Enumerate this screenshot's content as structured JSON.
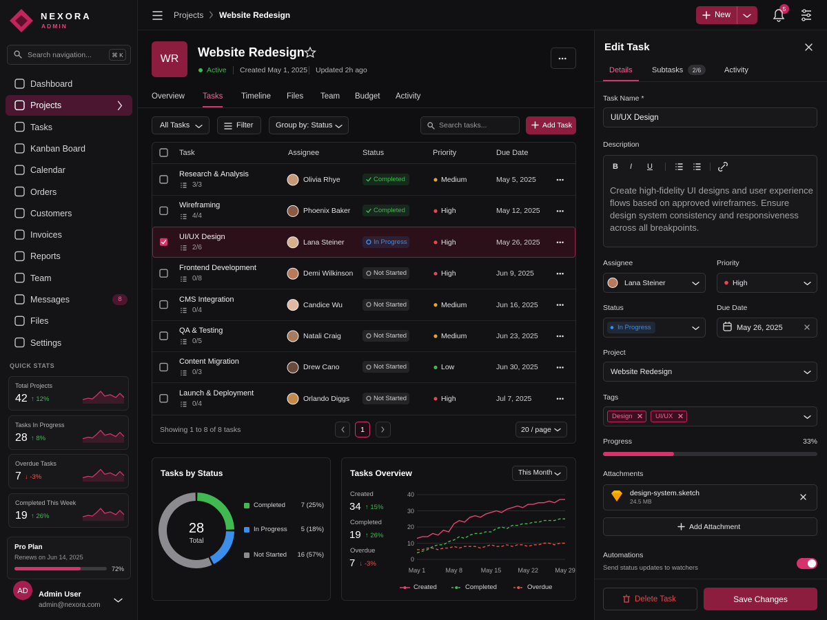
{
  "brand": {
    "name": "NEXORA",
    "sub": "ADMIN"
  },
  "sidebar": {
    "search": "Search navigation...",
    "shortcut": "⌘ K",
    "nav": [
      {
        "label": "Dashboard"
      },
      {
        "label": "Projects",
        "active": true
      },
      {
        "label": "Tasks"
      },
      {
        "label": "Kanban Board"
      },
      {
        "label": "Calendar"
      },
      {
        "label": "Orders"
      },
      {
        "label": "Customers"
      },
      {
        "label": "Invoices"
      },
      {
        "label": "Reports"
      },
      {
        "label": "Team"
      },
      {
        "label": "Messages",
        "badge": 8
      },
      {
        "label": "Files"
      },
      {
        "label": "Settings"
      }
    ],
    "quick_stats_title": "QUICK STATS",
    "stats": [
      {
        "label": "Total Projects",
        "value": 42,
        "change": "↑ 12%",
        "up": true
      },
      {
        "label": "Tasks In Progress",
        "value": 28,
        "change": "↑ 8%",
        "up": true
      },
      {
        "label": "Overdue Tasks",
        "value": 7,
        "change": "↓ -3%",
        "up": false
      },
      {
        "label": "Completed This Week",
        "value": 19,
        "change": "↑ 26%",
        "up": true
      }
    ],
    "plan": {
      "title": "Pro Plan",
      "renews": "Renews on Jun 14, 2025",
      "progress": {
        "value": 72,
        "label": "72%"
      }
    },
    "user": {
      "initials": "AD",
      "name": "Admin User",
      "email": "admin@nexora.com"
    }
  },
  "topbar": {
    "breadcrumb": [
      "Projects",
      "Website Redesign"
    ],
    "new_button": "New",
    "notifications": 5
  },
  "project": {
    "initials": "WR",
    "title": "Website Redesign",
    "status": "Active",
    "created": "Created May 1, 2025",
    "updated": "Updated 2h ago",
    "tabs": [
      {
        "label": "Overview"
      },
      {
        "label": "Tasks",
        "active": true
      },
      {
        "label": "Timeline"
      },
      {
        "label": "Files"
      },
      {
        "label": "Team"
      },
      {
        "label": "Budget"
      },
      {
        "label": "Activity"
      }
    ]
  },
  "toolbar": {
    "view": "All Tasks",
    "filter": "Filter",
    "group": "Group by: Status",
    "search": "Search tasks...",
    "add": "Add Task"
  },
  "table": {
    "columns": [
      "Task",
      "Assignee",
      "Status",
      "Priority",
      "Due Date"
    ],
    "rows": [
      {
        "name": "Research & Analysis",
        "subtasks": "3/3",
        "assignee": "Olivia Rhye",
        "status": {
          "label": "Completed",
          "color": "#3fb950"
        },
        "priority": {
          "label": "Medium",
          "color": "#e3a52b"
        },
        "due": "May 5, 2025"
      },
      {
        "name": "Wireframing",
        "subtasks": "4/4",
        "assignee": "Phoenix Baker",
        "status": {
          "label": "Completed",
          "color": "#3fb950"
        },
        "priority": {
          "label": "High",
          "color": "#e5484d"
        },
        "due": "May 12, 2025"
      },
      {
        "name": "UI/UX Design",
        "subtasks": "2/6",
        "assignee": "Lana Steiner",
        "status": {
          "label": "In Progress",
          "color": "#3b8eea"
        },
        "priority": {
          "label": "High",
          "color": "#e5484d"
        },
        "due": "May 26, 2025",
        "selected": true
      },
      {
        "name": "Frontend Development",
        "subtasks": "0/8",
        "assignee": "Demi Wilkinson",
        "status": {
          "label": "Not Started",
          "color": "#9a9a9f"
        },
        "priority": {
          "label": "High",
          "color": "#e5484d"
        },
        "due": "Jun 9, 2025"
      },
      {
        "name": "CMS Integration",
        "subtasks": "0/4",
        "assignee": "Candice Wu",
        "status": {
          "label": "Not Started",
          "color": "#9a9a9f"
        },
        "priority": {
          "label": "Medium",
          "color": "#e3a52b"
        },
        "due": "Jun 16, 2025"
      },
      {
        "name": "QA & Testing",
        "subtasks": "0/5",
        "assignee": "Natali Craig",
        "status": {
          "label": "Not Started",
          "color": "#9a9a9f"
        },
        "priority": {
          "label": "Medium",
          "color": "#e3a52b"
        },
        "due": "Jun 23, 2025"
      },
      {
        "name": "Content Migration",
        "subtasks": "0/3",
        "assignee": "Drew Cano",
        "status": {
          "label": "Not Started",
          "color": "#9a9a9f"
        },
        "priority": {
          "label": "Low",
          "color": "#3fb950"
        },
        "due": "Jun 30, 2025"
      },
      {
        "name": "Launch & Deployment",
        "subtasks": "0/4",
        "assignee": "Orlando Diggs",
        "status": {
          "label": "Not Started",
          "color": "#9a9a9f"
        },
        "priority": {
          "label": "High",
          "color": "#e5484d"
        },
        "due": "Jul 7, 2025"
      }
    ],
    "footer": "Showing 1 to 8 of 8 tasks",
    "page": 1,
    "per_page": "20 / page"
  },
  "chart_data": [
    {
      "type": "donut",
      "title": "Tasks by Status",
      "total": 28,
      "total_label": "Total",
      "categories": [
        "Completed",
        "In Progress",
        "Not Started"
      ],
      "values": [
        7,
        5,
        16
      ],
      "value_labels": [
        "7 (25%)",
        "5 (18%)",
        "16 (57%)"
      ],
      "colors": [
        "#3fb950",
        "#3b8eea",
        "#8b8b90"
      ]
    },
    {
      "type": "line",
      "title": "Tasks Overview",
      "period": "This Month",
      "summary": [
        {
          "name": "Created",
          "value": 34,
          "change": "↑ 15%",
          "up": true
        },
        {
          "name": "Completed",
          "value": 19,
          "change": "↑ 26%",
          "up": true
        },
        {
          "name": "Overdue",
          "value": 7,
          "change": "↓ -3%",
          "up": false
        }
      ],
      "categories": [
        "May 1",
        null,
        null,
        null,
        null,
        null,
        null,
        "May 8",
        null,
        null,
        null,
        null,
        null,
        null,
        "May 15",
        null,
        null,
        null,
        null,
        null,
        null,
        "May 22",
        null,
        null,
        null,
        null,
        null,
        null,
        "May 29"
      ],
      "series": [
        {
          "name": "Created",
          "color": "#e8436f",
          "dashed": false,
          "values": [
            13,
            14,
            14,
            16,
            15,
            18,
            17,
            22,
            24,
            23,
            26,
            27,
            26,
            28,
            29,
            30,
            29,
            31,
            32,
            33,
            32,
            34,
            34,
            35,
            35,
            36,
            35,
            37,
            37
          ]
        },
        {
          "name": "Completed",
          "color": "#3fb950",
          "dashed": true,
          "values": [
            4,
            5,
            6,
            8,
            9,
            9,
            11,
            12,
            14,
            13,
            15,
            16,
            16,
            17,
            17,
            19,
            20,
            19,
            21,
            21,
            22,
            22,
            23,
            23,
            24,
            24,
            24,
            25,
            25
          ]
        },
        {
          "name": "Overdue",
          "color": "#e5534b",
          "dashed": true,
          "values": [
            6,
            6,
            7,
            7,
            6,
            7,
            7,
            8,
            7,
            8,
            8,
            8,
            7,
            8,
            9,
            8,
            8,
            9,
            8,
            9,
            9,
            8,
            9,
            9,
            10,
            10,
            9,
            10,
            10
          ]
        }
      ],
      "ylim": [
        0,
        40
      ],
      "yticks": [
        0,
        10,
        20,
        30,
        40
      ],
      "grid": true
    }
  ],
  "edit_panel": {
    "title": "Edit Task",
    "tabs": [
      {
        "label": "Details",
        "active": true
      },
      {
        "label": "Subtasks",
        "badge": "2/6"
      },
      {
        "label": "Activity"
      }
    ],
    "task_name_label": "Task Name *",
    "task_name": "UI/UX Design",
    "description_label": "Description",
    "toolbar": [
      "B",
      "I",
      "U"
    ],
    "description": "Create high-fidelity UI designs and user experience flows based on approved wireframes. Ensure design system consistency and responsiveness across all breakpoints.",
    "assignee_label": "Assignee",
    "assignee": "Lana Steiner",
    "priority_label": "Priority",
    "priority": {
      "label": "High",
      "color": "#e5484d"
    },
    "status_label": "Status",
    "status": {
      "label": "In Progress",
      "color": "#3b8eea"
    },
    "due_label": "Due Date",
    "due": "May 26, 2025",
    "project_label": "Project",
    "project": "Website Redesign",
    "tags_label": "Tags",
    "tags": [
      "Design",
      "UI/UX"
    ],
    "progress_label": "Progress",
    "progress": {
      "value": 33,
      "label": "33%"
    },
    "attachments_label": "Attachments",
    "file_name": "design-system.sketch",
    "file_size": "24.5 MB",
    "add_attachment": "Add Attachment",
    "automations_label": "Automations",
    "automations_desc": "Send status updates to watchers",
    "automations_on": true,
    "delete": "Delete Task",
    "save": "Save Changes"
  }
}
